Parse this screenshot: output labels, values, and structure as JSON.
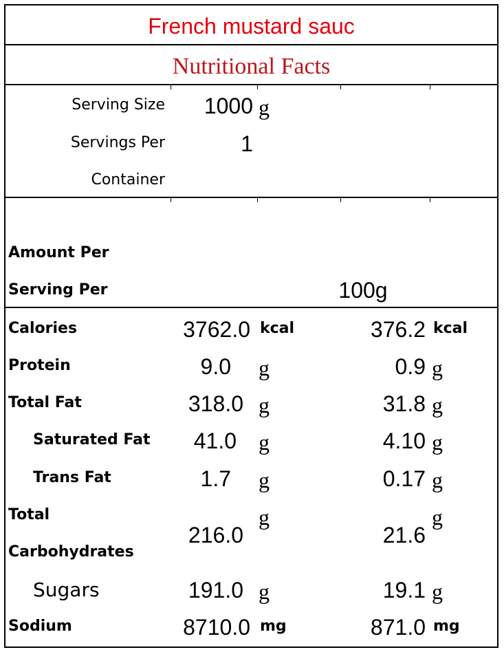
{
  "title": "French mustard sauc",
  "subtitle": "Nutritional Facts",
  "serving": {
    "size_label": "Serving Size",
    "size_value": "1000",
    "size_unit": "g",
    "per_container_label_1": "Servings Per",
    "per_container_label_2": "Container",
    "per_container_value": "1"
  },
  "amount": {
    "label_1": "Amount Per",
    "label_2": "Serving Per",
    "per_value": "100g"
  },
  "nutrients": {
    "calories": {
      "label": "Calories",
      "total": "3762.0",
      "total_unit": "kcal",
      "per100": "376.2",
      "per100_unit": "kcal"
    },
    "protein": {
      "label": "Protein",
      "total": "9.0",
      "total_unit": "g",
      "per100": "0.9",
      "per100_unit": "g"
    },
    "total_fat": {
      "label": "Total Fat",
      "total": "318.0",
      "total_unit": "g",
      "per100": "31.8",
      "per100_unit": "g"
    },
    "saturated_fat": {
      "label": "Saturated Fat",
      "total": "41.0",
      "total_unit": "g",
      "per100": "4.10",
      "per100_unit": "g"
    },
    "trans_fat": {
      "label": "Trans Fat",
      "total": "1.7",
      "total_unit": "g",
      "per100": "0.17",
      "per100_unit": "g"
    },
    "carbohydrates": {
      "label_1": "Total",
      "label_2": "Carbohydrates",
      "total": "216.0",
      "total_unit": "g",
      "per100": "21.6",
      "per100_unit": "g"
    },
    "sugars": {
      "label": "Sugars",
      "total": "191.0",
      "total_unit": "g",
      "per100": "19.1",
      "per100_unit": "g"
    },
    "sodium": {
      "label": "Sodium",
      "total": "8710.0",
      "total_unit": "mg",
      "per100": "871.0",
      "per100_unit": "mg"
    }
  }
}
